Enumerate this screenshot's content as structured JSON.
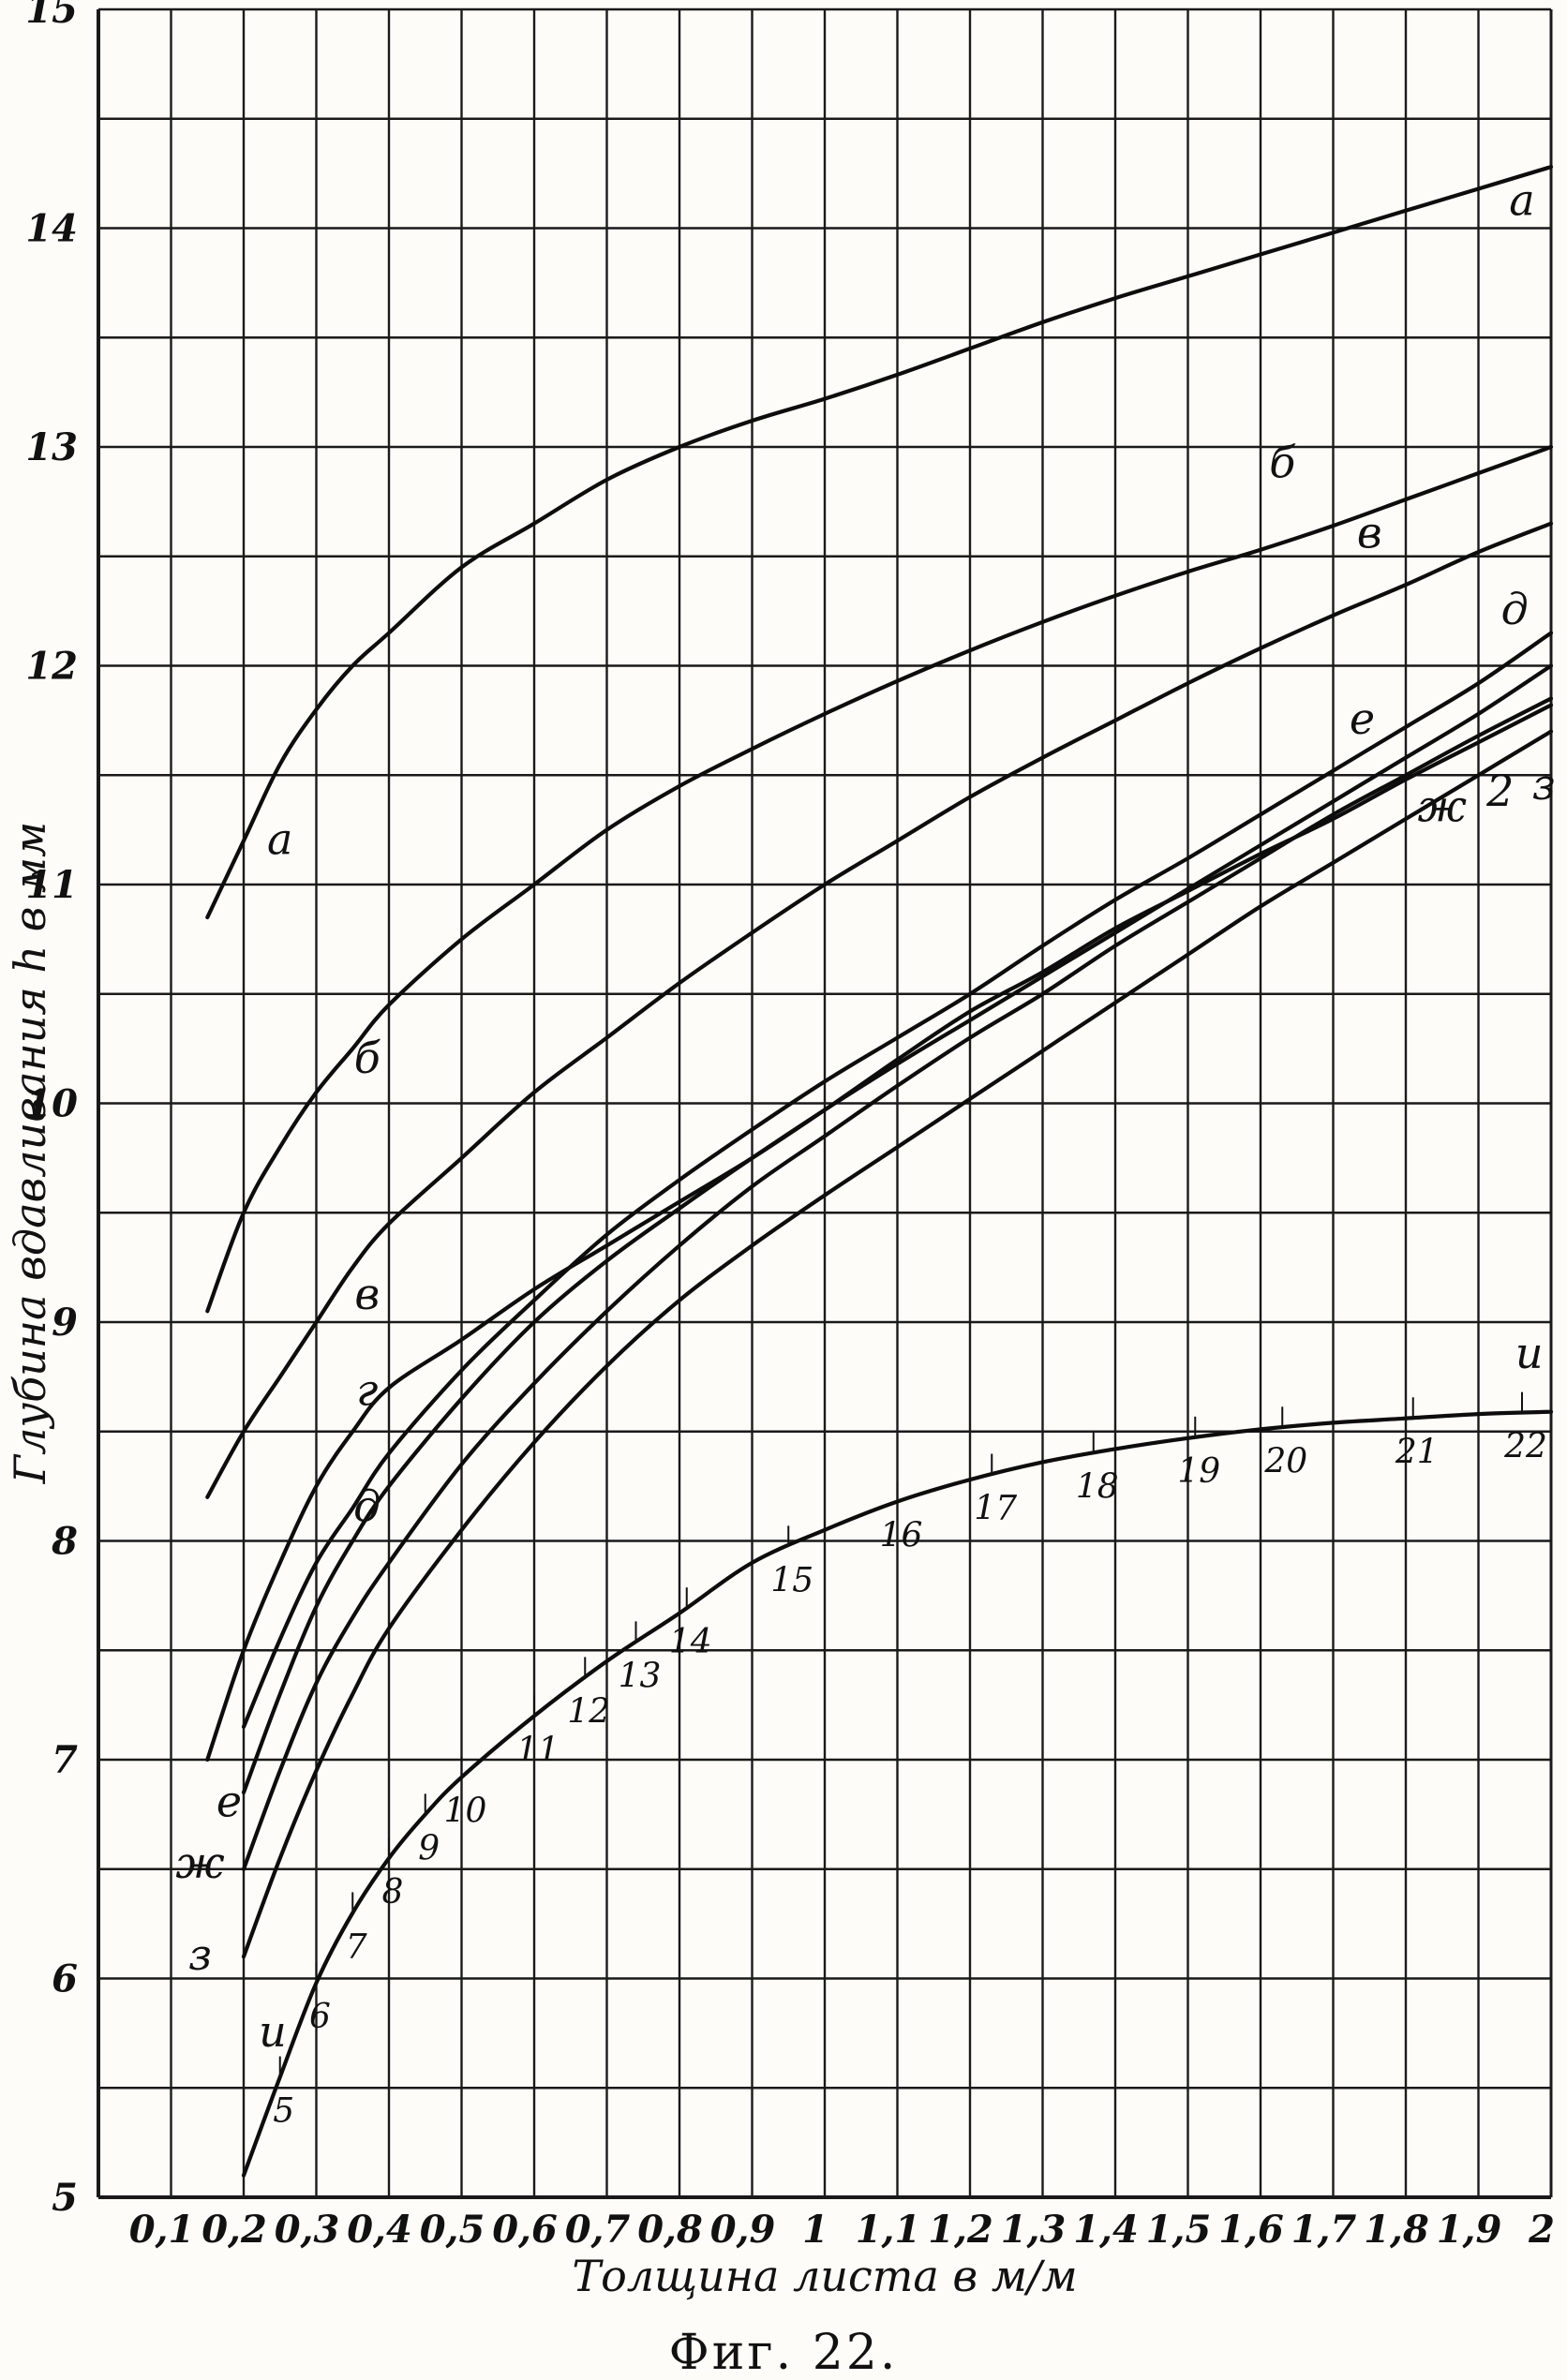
{
  "chart_data": {
    "type": "line",
    "caption": "Фиг. 22.",
    "xlabel": "Толщина листа в м/м",
    "ylabel": "Глубина вдавливания h в мм",
    "xlim": [
      0,
      2.0
    ],
    "ylim": [
      5,
      15
    ],
    "x_ticks": [
      {
        "value": 0.1,
        "label": "0,1"
      },
      {
        "value": 0.2,
        "label": "0,2"
      },
      {
        "value": 0.3,
        "label": "0,3"
      },
      {
        "value": 0.4,
        "label": "0,4"
      },
      {
        "value": 0.5,
        "label": "0,5"
      },
      {
        "value": 0.6,
        "label": "0,6"
      },
      {
        "value": 0.7,
        "label": "0,7"
      },
      {
        "value": 0.8,
        "label": "0,8"
      },
      {
        "value": 0.9,
        "label": "0,9"
      },
      {
        "value": 1.0,
        "label": "1"
      },
      {
        "value": 1.1,
        "label": "1,1"
      },
      {
        "value": 1.2,
        "label": "1,2"
      },
      {
        "value": 1.3,
        "label": "1,3"
      },
      {
        "value": 1.4,
        "label": "1,4"
      },
      {
        "value": 1.5,
        "label": "1,5"
      },
      {
        "value": 1.6,
        "label": "1,6"
      },
      {
        "value": 1.7,
        "label": "1,7"
      },
      {
        "value": 1.8,
        "label": "1,8"
      },
      {
        "value": 1.9,
        "label": "1,9"
      },
      {
        "value": 2.0,
        "label": "2"
      }
    ],
    "y_ticks": [
      {
        "value": 5,
        "label": "5"
      },
      {
        "value": 6,
        "label": "6"
      },
      {
        "value": 7,
        "label": "7"
      },
      {
        "value": 8,
        "label": "8"
      },
      {
        "value": 9,
        "label": "9"
      },
      {
        "value": 10,
        "label": "10"
      },
      {
        "value": 11,
        "label": "11"
      },
      {
        "value": 12,
        "label": "12"
      },
      {
        "value": 13,
        "label": "13"
      },
      {
        "value": 14,
        "label": "14"
      },
      {
        "value": 15,
        "label": "15"
      }
    ],
    "grid": {
      "x_step": 0.1,
      "y_step": 0.5
    },
    "series": [
      {
        "name": "а",
        "x": [
          0.15,
          0.2,
          0.25,
          0.3,
          0.35,
          0.4,
          0.5,
          0.6,
          0.7,
          0.8,
          0.9,
          1.0,
          1.1,
          1.2,
          1.3,
          1.4,
          1.5,
          1.6,
          1.7,
          1.8,
          1.9,
          2.0
        ],
        "y": [
          10.85,
          11.2,
          11.55,
          11.8,
          12.0,
          12.15,
          12.45,
          12.65,
          12.85,
          13.0,
          13.12,
          13.22,
          13.33,
          13.45,
          13.57,
          13.68,
          13.78,
          13.88,
          13.98,
          14.08,
          14.18,
          14.28
        ]
      },
      {
        "name": "б",
        "x": [
          0.15,
          0.2,
          0.25,
          0.3,
          0.35,
          0.4,
          0.5,
          0.6,
          0.7,
          0.8,
          0.9,
          1.0,
          1.1,
          1.2,
          1.3,
          1.4,
          1.5,
          1.6,
          1.7,
          1.8,
          1.9,
          2.0
        ],
        "y": [
          9.05,
          9.5,
          9.8,
          10.05,
          10.25,
          10.45,
          10.75,
          11.0,
          11.25,
          11.45,
          11.62,
          11.78,
          11.93,
          12.07,
          12.2,
          12.32,
          12.43,
          12.53,
          12.64,
          12.76,
          12.88,
          13.0
        ]
      },
      {
        "name": "в",
        "x": [
          0.15,
          0.2,
          0.25,
          0.3,
          0.35,
          0.4,
          0.5,
          0.6,
          0.7,
          0.8,
          0.9,
          1.0,
          1.1,
          1.2,
          1.3,
          1.4,
          1.5,
          1.6,
          1.7,
          1.8,
          1.9,
          2.0
        ],
        "y": [
          8.2,
          8.5,
          8.75,
          9.0,
          9.25,
          9.45,
          9.75,
          10.05,
          10.3,
          10.55,
          10.78,
          11.0,
          11.2,
          11.4,
          11.58,
          11.75,
          11.92,
          12.08,
          12.23,
          12.37,
          12.52,
          12.65
        ]
      },
      {
        "name": "г",
        "x": [
          0.15,
          0.2,
          0.25,
          0.3,
          0.35,
          0.4,
          0.5,
          0.6,
          0.7,
          0.8,
          0.9,
          1.0,
          1.1,
          1.2,
          1.3,
          1.4,
          1.5,
          1.6,
          1.7,
          1.8,
          1.9,
          2.0
        ],
        "y": [
          7.0,
          7.5,
          7.9,
          8.25,
          8.5,
          8.7,
          8.92,
          9.15,
          9.35,
          9.55,
          9.75,
          9.97,
          10.2,
          10.42,
          10.6,
          10.8,
          10.97,
          11.14,
          11.3,
          11.48,
          11.65,
          11.82
        ]
      },
      {
        "name": "д",
        "x": [
          0.2,
          0.25,
          0.3,
          0.35,
          0.4,
          0.5,
          0.6,
          0.7,
          0.8,
          0.9,
          1.0,
          1.1,
          1.2,
          1.3,
          1.4,
          1.5,
          1.6,
          1.7,
          1.8,
          1.9,
          2.0
        ],
        "y": [
          7.15,
          7.55,
          7.9,
          8.15,
          8.4,
          8.78,
          9.1,
          9.4,
          9.65,
          9.88,
          10.1,
          10.3,
          10.5,
          10.72,
          10.93,
          11.12,
          11.32,
          11.52,
          11.72,
          11.92,
          12.15
        ]
      },
      {
        "name": "е",
        "x": [
          0.2,
          0.25,
          0.3,
          0.35,
          0.4,
          0.5,
          0.6,
          0.7,
          0.8,
          0.9,
          1.0,
          1.1,
          1.2,
          1.3,
          1.4,
          1.5,
          1.6,
          1.7,
          1.8,
          1.9,
          2.0
        ],
        "y": [
          6.85,
          7.3,
          7.7,
          8.0,
          8.25,
          8.65,
          9.0,
          9.28,
          9.52,
          9.75,
          9.97,
          10.18,
          10.38,
          10.58,
          10.78,
          10.98,
          11.18,
          11.38,
          11.58,
          11.78,
          12.0
        ]
      },
      {
        "name": "ж",
        "x": [
          0.2,
          0.25,
          0.3,
          0.35,
          0.4,
          0.5,
          0.6,
          0.7,
          0.8,
          0.9,
          1.0,
          1.1,
          1.2,
          1.3,
          1.4,
          1.5,
          1.6,
          1.7,
          1.8,
          1.9,
          2.0
        ],
        "y": [
          6.5,
          6.95,
          7.35,
          7.65,
          7.9,
          8.35,
          8.72,
          9.05,
          9.35,
          9.62,
          9.85,
          10.08,
          10.3,
          10.5,
          10.72,
          10.92,
          11.12,
          11.32,
          11.5,
          11.68,
          11.85
        ]
      },
      {
        "name": "з",
        "x": [
          0.2,
          0.25,
          0.3,
          0.35,
          0.4,
          0.5,
          0.6,
          0.7,
          0.8,
          0.9,
          1.0,
          1.1,
          1.2,
          1.3,
          1.4,
          1.5,
          1.6,
          1.7,
          1.8,
          1.9,
          2.0
        ],
        "y": [
          6.1,
          6.55,
          6.95,
          7.3,
          7.6,
          8.05,
          8.45,
          8.8,
          9.1,
          9.35,
          9.58,
          9.8,
          10.02,
          10.24,
          10.46,
          10.68,
          10.9,
          11.1,
          11.3,
          11.5,
          11.7
        ]
      },
      {
        "name": "и",
        "x": [
          0.2,
          0.25,
          0.3,
          0.35,
          0.4,
          0.45,
          0.5,
          0.6,
          0.7,
          0.8,
          0.9,
          1.0,
          1.1,
          1.2,
          1.3,
          1.4,
          1.5,
          1.6,
          1.7,
          1.8,
          1.9,
          2.0
        ],
        "y": [
          5.1,
          5.55,
          5.98,
          6.3,
          6.55,
          6.75,
          6.92,
          7.2,
          7.45,
          7.67,
          7.9,
          8.05,
          8.18,
          8.28,
          8.36,
          8.42,
          8.47,
          8.51,
          8.54,
          8.56,
          8.58,
          8.59
        ]
      }
    ],
    "curve_labels": [
      {
        "text": "а",
        "x": 1.96,
        "y": 14.12
      },
      {
        "text": "а",
        "x": 0.25,
        "y": 11.2
      },
      {
        "text": "б",
        "x": 1.63,
        "y": 12.92
      },
      {
        "text": "б",
        "x": 0.37,
        "y": 10.2
      },
      {
        "text": "в",
        "x": 1.75,
        "y": 12.6
      },
      {
        "text": "в",
        "x": 0.37,
        "y": 9.12
      },
      {
        "text": "г",
        "x": 0.37,
        "y": 8.68
      },
      {
        "text": "д",
        "x": 1.95,
        "y": 12.25
      },
      {
        "text": "д",
        "x": 0.37,
        "y": 8.15
      },
      {
        "text": "е",
        "x": 1.74,
        "y": 11.75
      },
      {
        "text": "е",
        "x": 0.18,
        "y": 6.8
      },
      {
        "text": "ж",
        "x": 1.85,
        "y": 11.35
      },
      {
        "text": "ж",
        "x": 0.14,
        "y": 6.52
      },
      {
        "text": "з",
        "x": 1.99,
        "y": 11.45
      },
      {
        "text": "з",
        "x": 0.14,
        "y": 6.1
      },
      {
        "text": "и",
        "x": 1.97,
        "y": 8.85
      },
      {
        "text": "и",
        "x": 0.24,
        "y": 5.75
      },
      {
        "text": "2",
        "x": 1.93,
        "y": 11.42
      }
    ],
    "point_marks": [
      {
        "label": "5",
        "x": 0.25
      },
      {
        "label": "6",
        "x": 0.3
      },
      {
        "label": "7",
        "x": 0.35
      },
      {
        "label": "8",
        "x": 0.4
      },
      {
        "label": "9",
        "x": 0.45
      },
      {
        "label": "10",
        "x": 0.5
      },
      {
        "label": "11",
        "x": 0.6
      },
      {
        "label": "12",
        "x": 0.67
      },
      {
        "label": "13",
        "x": 0.74
      },
      {
        "label": "14",
        "x": 0.81
      },
      {
        "label": "15",
        "x": 0.95
      },
      {
        "label": "16",
        "x": 1.1
      },
      {
        "label": "17",
        "x": 1.23
      },
      {
        "label": "18",
        "x": 1.37
      },
      {
        "label": "19",
        "x": 1.51
      },
      {
        "label": "20",
        "x": 1.63
      },
      {
        "label": "21",
        "x": 1.81
      },
      {
        "label": "22",
        "x": 1.96
      }
    ]
  }
}
